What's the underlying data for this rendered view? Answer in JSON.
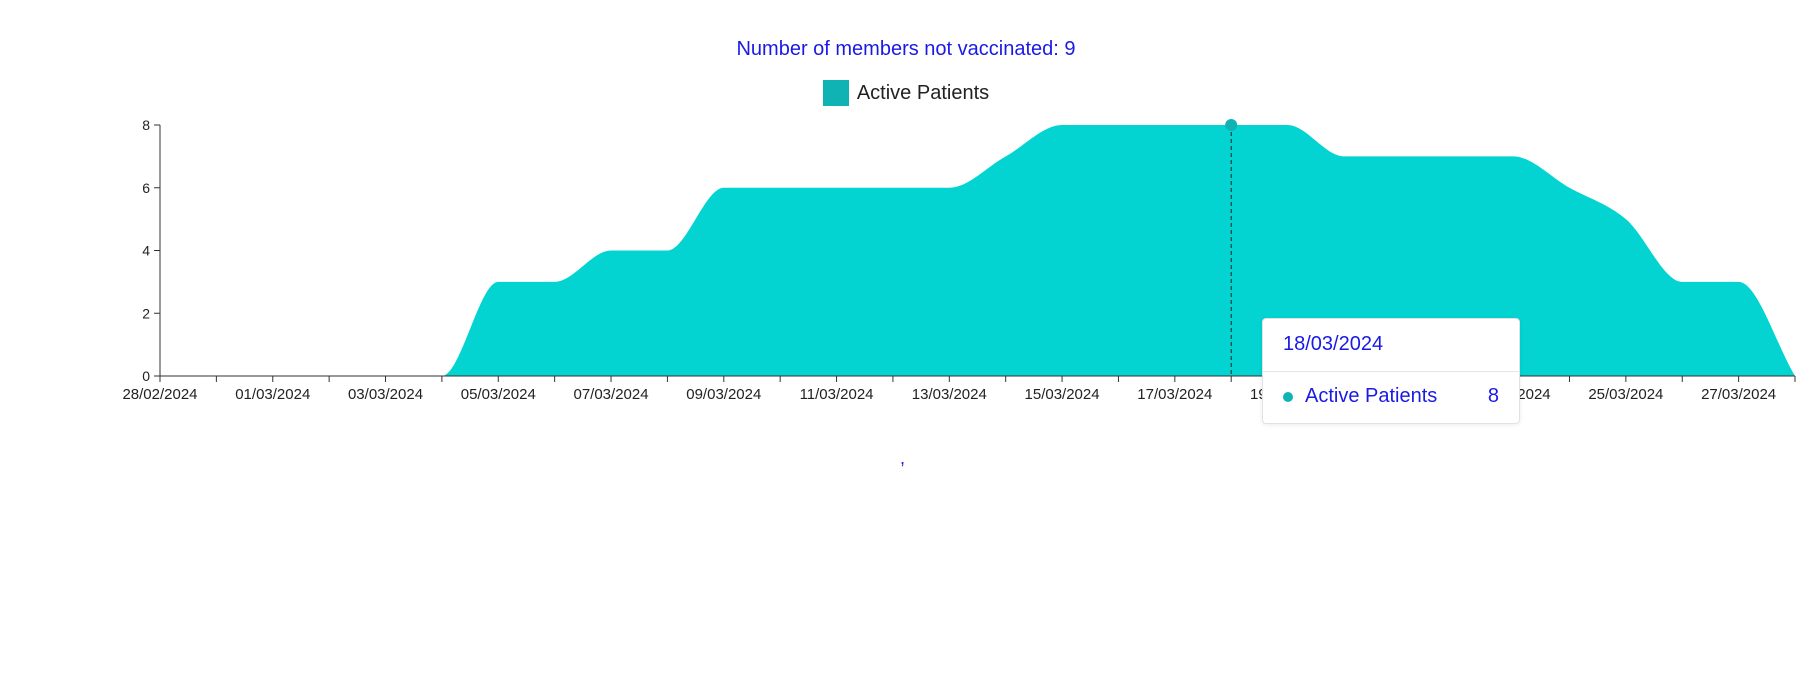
{
  "header": {
    "title": "Number of members not vaccinated: 9"
  },
  "colors": {
    "area": "#03d4d1",
    "legend_swatch": "#0fb3b3",
    "title": "#1a1ae6"
  },
  "chart_data": {
    "type": "area",
    "legend": [
      {
        "name": "Active Patients"
      }
    ],
    "x": [
      "28/02/2024",
      "29/02/2024",
      "01/03/2024",
      "02/03/2024",
      "03/03/2024",
      "04/03/2024",
      "05/03/2024",
      "06/03/2024",
      "07/03/2024",
      "08/03/2024",
      "09/03/2024",
      "10/03/2024",
      "11/03/2024",
      "12/03/2024",
      "13/03/2024",
      "14/03/2024",
      "15/03/2024",
      "16/03/2024",
      "17/03/2024",
      "18/03/2024",
      "19/03/2024",
      "20/03/2024",
      "21/03/2024",
      "22/03/2024",
      "23/03/2024",
      "24/03/2024",
      "25/03/2024",
      "26/03/2024",
      "27/03/2024",
      "28/03/2024"
    ],
    "x_tick_labels": [
      "28/02/2024",
      "01/03/2024",
      "03/03/2024",
      "05/03/2024",
      "07/03/2024",
      "09/03/2024",
      "11/03/2024",
      "13/03/2024",
      "15/03/2024",
      "17/03/2024",
      "19/03/2024",
      "21/03/2024",
      "23/03/2024",
      "25/03/2024",
      "27/03/2024"
    ],
    "series": [
      {
        "name": "Active Patients",
        "values": [
          0,
          0,
          0,
          0,
          0,
          0,
          3,
          3,
          4,
          4,
          6,
          6,
          6,
          6,
          6,
          7,
          8,
          8,
          8,
          8,
          8,
          7,
          7,
          7,
          7,
          6,
          5,
          3,
          3,
          0
        ]
      }
    ],
    "y_ticks": [
      0,
      2,
      4,
      6,
      8
    ],
    "ylim": [
      0,
      8
    ],
    "tooltip": {
      "date": "18/03/2024",
      "series": "Active Patients",
      "value": "8"
    },
    "hover_index": 19
  },
  "footer": {
    "comma": ","
  }
}
